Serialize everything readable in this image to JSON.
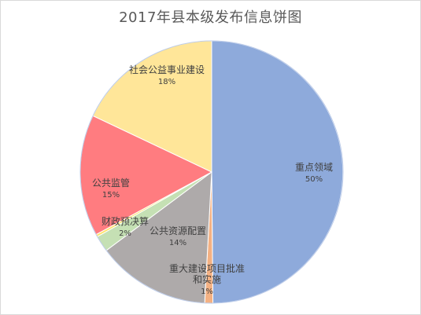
{
  "chart_data": {
    "type": "pie",
    "title": "2017年县本级发布信息饼图",
    "start_angle_deg": 90,
    "direction": "clockwise",
    "slices": [
      {
        "label": [
          "重点领域"
        ],
        "value": 50,
        "value_label": "50%",
        "color": "#8eaadb"
      },
      {
        "label": [
          "重大建设项目批准",
          "和实施"
        ],
        "value": 1,
        "value_label": "1%",
        "color": "#f4b183"
      },
      {
        "label": [
          "公共资源配置"
        ],
        "value": 14,
        "value_label": "14%",
        "color": "#aeaaaa"
      },
      {
        "label": [
          "财政预决算"
        ],
        "value": 2,
        "value_label": "2%",
        "color": "#c5e0b4"
      },
      {
        "label": [],
        "value": 0.3,
        "value_label": "",
        "color": "#ffe36d"
      },
      {
        "label": [
          "公共监管"
        ],
        "value": 15,
        "value_label": "15%",
        "color": "#ff7c80"
      },
      {
        "label": [
          "社会公益事业建设"
        ],
        "value": 18,
        "value_label": "18%",
        "color": "#ffe699"
      }
    ],
    "legend": "none"
  }
}
